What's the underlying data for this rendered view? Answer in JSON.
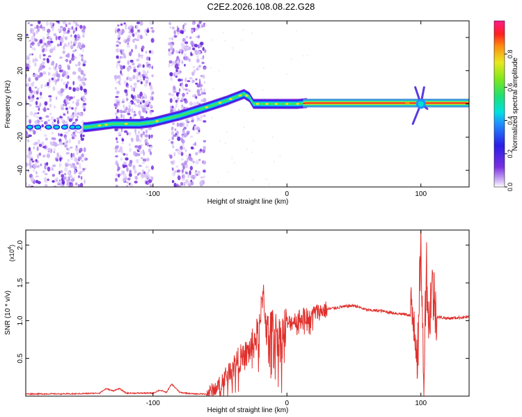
{
  "title": "C2E2.2026.108.08.22.G28",
  "chart_data": [
    {
      "type": "heatmap",
      "xlabel": "Height of straight line (km)",
      "ylabel": "Frequency (Hz)",
      "xlim": [
        -195,
        136
      ],
      "ylim": [
        -50,
        50
      ],
      "xticks": [
        -100,
        0,
        100
      ],
      "yticks": [
        -40,
        -20,
        0,
        20,
        40
      ],
      "colorbar": {
        "label": "Normalized spectral amplitude",
        "range": [
          0,
          1
        ],
        "ticks": [
          0.0,
          0.2,
          0.4,
          0.6,
          0.8
        ]
      },
      "ridge": {
        "x": [
          -195,
          -150,
          -130,
          -110,
          -100,
          -80,
          -60,
          -45,
          -32,
          -28,
          -25,
          -15,
          0,
          8,
          15,
          136
        ],
        "y": [
          -14,
          -14,
          -12,
          -12,
          -11,
          -7,
          -2,
          2,
          6,
          4,
          0,
          0,
          0,
          0,
          0.5,
          0.5
        ]
      },
      "noise_bands_km": [
        [
          -195,
          -150
        ],
        [
          -128,
          -100
        ],
        [
          -88,
          -61
        ]
      ],
      "burst_km": 100
    },
    {
      "type": "line",
      "xlabel": "Height of straight line (km)",
      "ylabel": "SNR (10 * v/v)",
      "yscale_label": "(x10",
      "yscale_exp": "4",
      "xlim": [
        -195,
        136
      ],
      "ylim": [
        0,
        2.2
      ],
      "xticks": [
        -100,
        0,
        100
      ],
      "yticks": [
        0.5,
        1.0,
        1.5,
        2.0
      ],
      "color": "#e0302c",
      "series": [
        {
          "x": [
            -195,
            -160,
            -140,
            -135,
            -130,
            -125,
            -120,
            -100,
            -95,
            -90,
            -86,
            -80,
            -70,
            -60,
            -50,
            -45,
            -40,
            -35,
            -30,
            -25,
            -20,
            -18,
            -15,
            -10,
            -5,
            0,
            10,
            20,
            30,
            40,
            50,
            55,
            60,
            70,
            80,
            90,
            95,
            98,
            100,
            102,
            104,
            106,
            108,
            112,
            120,
            136
          ],
          "y": [
            0.03,
            0.03,
            0.04,
            0.1,
            0.07,
            0.1,
            0.04,
            0.04,
            0.08,
            0.05,
            0.16,
            0.05,
            0.03,
            0.03,
            0.15,
            0.3,
            0.4,
            0.5,
            0.55,
            0.7,
            0.9,
            1.45,
            0.85,
            0.9,
            0.75,
            0.95,
            1.05,
            1.1,
            1.15,
            1.18,
            1.2,
            1.17,
            1.14,
            1.13,
            1.1,
            1.08,
            1.05,
            0.5,
            2.2,
            0.1,
            1.8,
            0.9,
            1.5,
            1.05,
            1.03,
            1.05
          ]
        }
      ]
    }
  ]
}
